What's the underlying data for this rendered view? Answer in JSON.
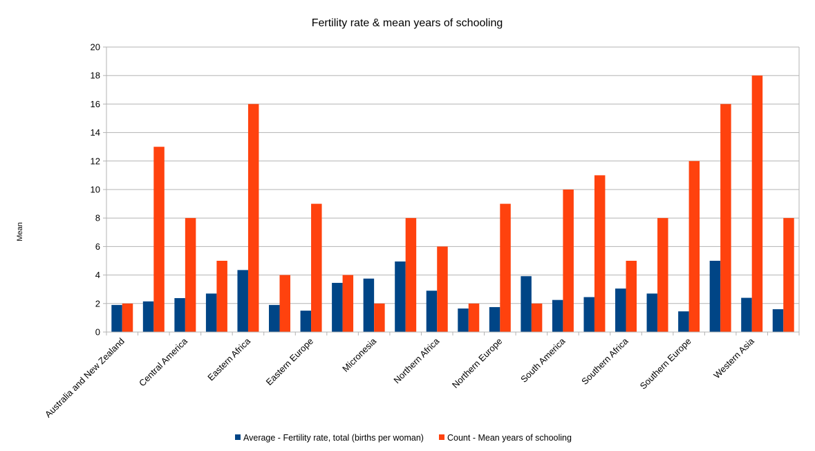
{
  "chart_data": {
    "type": "bar",
    "title": "Fertility rate & mean years of schooling",
    "xlabel": "",
    "ylabel": "Mean",
    "ylim": [
      0,
      20
    ],
    "yticks": [
      0,
      2,
      4,
      6,
      8,
      10,
      12,
      14,
      16,
      18,
      20
    ],
    "grid": true,
    "legend_position": "bottom",
    "categories": [
      "",
      "",
      "",
      "",
      "",
      "",
      "",
      "",
      "",
      "",
      "",
      "",
      "",
      "",
      "",
      "",
      "",
      "",
      "",
      "",
      "",
      ""
    ],
    "x_tick_labels": [
      "Australia and New Zealand",
      "Central America",
      "Eastern Africa",
      "Eastern Europe",
      "Micronesia",
      "Northern Africa",
      "Northern Europe",
      "South America",
      "Southern Africa",
      "Southern Europe",
      "Western Asia"
    ],
    "series": [
      {
        "name": "Average - Fertility rate, total (births per woman)",
        "color": "#004586",
        "values": [
          1.9,
          2.15,
          2.38,
          2.7,
          4.35,
          1.9,
          1.5,
          3.45,
          3.75,
          4.95,
          2.9,
          1.65,
          1.75,
          3.92,
          2.25,
          2.45,
          3.05,
          2.7,
          1.45,
          5.0,
          2.4,
          1.6
        ]
      },
      {
        "name": "Count - Mean years of schooling",
        "color": "#ff420e",
        "values": [
          2,
          13,
          8,
          5,
          16,
          4,
          9,
          4,
          2,
          8,
          6,
          2,
          9,
          2,
          10,
          11,
          5,
          8,
          12,
          16,
          18,
          8
        ]
      }
    ]
  }
}
